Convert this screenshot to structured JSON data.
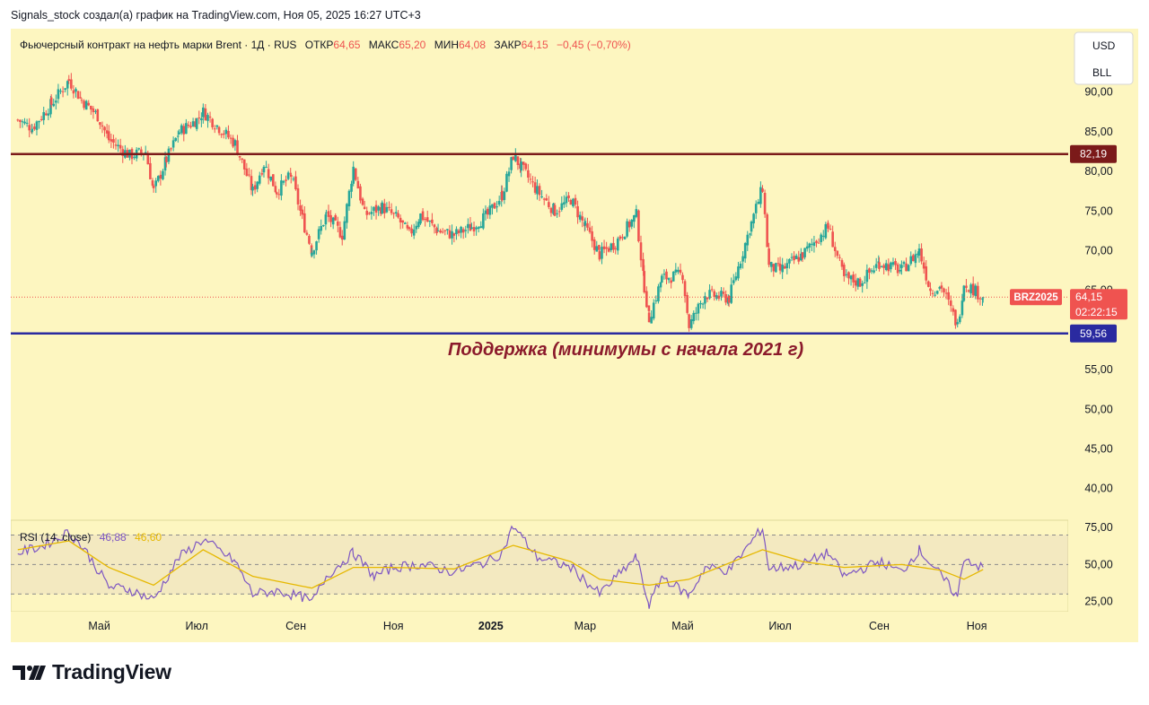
{
  "caption": "Signals_stock создал(а) график на TradingView.com, Ноя 05, 2025 16:27 UTC+3",
  "legend": {
    "symbol": "Фьючерсный контракт на нефть марки Brent · 1Д · RUS",
    "open_label": "ОТКР",
    "open": "64,65",
    "high_label": "МАКС",
    "high": "65,20",
    "low_label": "МИН",
    "low": "64,08",
    "close_label": "ЗАКР",
    "close": "64,15",
    "change": "−0,45 (−0,70%)"
  },
  "currency": {
    "top": "USD",
    "bottom": "BLL"
  },
  "levels": {
    "resistance": {
      "value": 82.19,
      "label": "82,19",
      "color": "#7b1a1a"
    },
    "support": {
      "value": 59.56,
      "label": "59,56",
      "color": "#2a2aa0"
    },
    "support_annotation": "Поддержка (минимумы с начала 2021 г)"
  },
  "last_price": {
    "ticker": "BRZ2025",
    "price": "64,15",
    "countdown": "02:22:15",
    "value": 64.15,
    "color": "#ef5350"
  },
  "rsi": {
    "label": "RSI (14, close)",
    "value": "46,88",
    "ma_value": "46,60",
    "value_color": "#7e57c2",
    "ma_color": "#e6b800"
  },
  "brand": "TradingView",
  "colors": {
    "background": "#fdf6c0",
    "up": "#26a69a",
    "down": "#ef5350"
  },
  "chart_data": [
    {
      "type": "candlestick",
      "title": "Фьючерсный контракт на нефть марки Brent · 1Д · RUS",
      "ylim": [
        36,
        98
      ],
      "y_ticks": [
        "95,00",
        "90,00",
        "85,00",
        "80,00",
        "75,00",
        "70,00",
        "65,00",
        "60,00",
        "55,00",
        "50,00",
        "45,00",
        "40,00"
      ],
      "y_tick_values": [
        95,
        90,
        85,
        80,
        75,
        70,
        65,
        60,
        55,
        50,
        45,
        40
      ],
      "x_ticks": [
        "Май",
        "Июл",
        "Сен",
        "Ноя",
        "2025",
        "Мар",
        "Май",
        "Июл",
        "Сен",
        "Ноя"
      ],
      "x_tick_dates": [
        "2024-05-01",
        "2024-07-01",
        "2024-09-01",
        "2024-11-01",
        "2025-01-01",
        "2025-03-01",
        "2025-05-01",
        "2025-07-01",
        "2025-09-01",
        "2025-11-01"
      ],
      "x_range": [
        "2024-03-10",
        "2025-11-06"
      ],
      "series": [
        {
          "name": "Фьючерсный контракт на нефть марки Brent",
          "points": [
            [
              "2024-03-11",
              86.5
            ],
            [
              "2024-03-20",
              85.5
            ],
            [
              "2024-04-01",
              88.5
            ],
            [
              "2024-04-12",
              91.5
            ],
            [
              "2024-04-20",
              89.0
            ],
            [
              "2024-04-30",
              87.0
            ],
            [
              "2024-05-07",
              84.0
            ],
            [
              "2024-05-20",
              82.0
            ],
            [
              "2024-05-30",
              82.5
            ],
            [
              "2024-06-04",
              77.5
            ],
            [
              "2024-06-12",
              81.5
            ],
            [
              "2024-06-20",
              85.0
            ],
            [
              "2024-07-01",
              86.5
            ],
            [
              "2024-07-05",
              87.5
            ],
            [
              "2024-07-15",
              85.5
            ],
            [
              "2024-07-25",
              83.5
            ],
            [
              "2024-08-05",
              77.5
            ],
            [
              "2024-08-12",
              81.0
            ],
            [
              "2024-08-20",
              77.5
            ],
            [
              "2024-08-29",
              79.5
            ],
            [
              "2024-09-05",
              74.0
            ],
            [
              "2024-09-11",
              70.0
            ],
            [
              "2024-09-20",
              74.5
            ],
            [
              "2024-09-30",
              72.0
            ],
            [
              "2024-10-07",
              80.5
            ],
            [
              "2024-10-14",
              74.5
            ],
            [
              "2024-10-25",
              75.5
            ],
            [
              "2024-11-04",
              74.0
            ],
            [
              "2024-11-11",
              72.0
            ],
            [
              "2024-11-18",
              74.5
            ],
            [
              "2024-11-29",
              72.5
            ],
            [
              "2024-12-09",
              72.0
            ],
            [
              "2024-12-20",
              73.0
            ],
            [
              "2024-12-30",
              74.5
            ],
            [
              "2025-01-08",
              77.0
            ],
            [
              "2025-01-15",
              82.0
            ],
            [
              "2025-01-20",
              80.5
            ],
            [
              "2025-01-30",
              77.5
            ],
            [
              "2025-02-10",
              75.0
            ],
            [
              "2025-02-20",
              76.5
            ],
            [
              "2025-03-01",
              73.0
            ],
            [
              "2025-03-10",
              69.5
            ],
            [
              "2025-03-20",
              71.0
            ],
            [
              "2025-04-02",
              74.5
            ],
            [
              "2025-04-07",
              65.5
            ],
            [
              "2025-04-10",
              61.5
            ],
            [
              "2025-04-18",
              66.5
            ],
            [
              "2025-05-01",
              67.0
            ],
            [
              "2025-05-05",
              60.5
            ],
            [
              "2025-05-15",
              64.5
            ],
            [
              "2025-05-30",
              64.0
            ],
            [
              "2025-06-13",
              73.5
            ],
            [
              "2025-06-20",
              78.0
            ],
            [
              "2025-06-24",
              68.0
            ],
            [
              "2025-07-01",
              67.5
            ],
            [
              "2025-07-15",
              69.5
            ],
            [
              "2025-07-31",
              73.0
            ],
            [
              "2025-08-10",
              66.5
            ],
            [
              "2025-08-20",
              66.0
            ],
            [
              "2025-09-01",
              68.5
            ],
            [
              "2025-09-15",
              67.5
            ],
            [
              "2025-09-26",
              70.0
            ],
            [
              "2025-10-03",
              65.0
            ],
            [
              "2025-10-10",
              65.5
            ],
            [
              "2025-10-20",
              60.5
            ],
            [
              "2025-10-24",
              66.0
            ],
            [
              "2025-11-05",
              64.15
            ]
          ]
        }
      ]
    },
    {
      "type": "line",
      "title": "RSI (14, close)",
      "ylim": [
        18,
        80
      ],
      "y_ticks": [
        "75,00",
        "50,00",
        "25,00"
      ],
      "y_tick_values": [
        75,
        50,
        25
      ],
      "band": [
        30,
        70
      ],
      "series": [
        {
          "name": "RSI",
          "points": [
            [
              "2024-03-11",
              58
            ],
            [
              "2024-03-25",
              62
            ],
            [
              "2024-04-05",
              68
            ],
            [
              "2024-04-12",
              72
            ],
            [
              "2024-04-22",
              60
            ],
            [
              "2024-05-07",
              35
            ],
            [
              "2024-05-20",
              33
            ],
            [
              "2024-06-04",
              26
            ],
            [
              "2024-06-20",
              55
            ],
            [
              "2024-07-05",
              67
            ],
            [
              "2024-07-25",
              52
            ],
            [
              "2024-08-05",
              30
            ],
            [
              "2024-08-20",
              32
            ],
            [
              "2024-09-05",
              28
            ],
            [
              "2024-09-11",
              24
            ],
            [
              "2024-09-20",
              42
            ],
            [
              "2024-10-07",
              58
            ],
            [
              "2024-10-20",
              42
            ],
            [
              "2024-11-01",
              48
            ],
            [
              "2024-11-18",
              50
            ],
            [
              "2024-12-09",
              45
            ],
            [
              "2024-12-30",
              52
            ],
            [
              "2025-01-08",
              58
            ],
            [
              "2025-01-15",
              76
            ],
            [
              "2025-01-30",
              55
            ],
            [
              "2025-02-20",
              48
            ],
            [
              "2025-03-10",
              30
            ],
            [
              "2025-04-02",
              55
            ],
            [
              "2025-04-10",
              22
            ],
            [
              "2025-04-18",
              42
            ],
            [
              "2025-05-05",
              29
            ],
            [
              "2025-05-15",
              48
            ],
            [
              "2025-05-30",
              46
            ],
            [
              "2025-06-20",
              75
            ],
            [
              "2025-06-24",
              47
            ],
            [
              "2025-07-15",
              50
            ],
            [
              "2025-07-31",
              58
            ],
            [
              "2025-08-10",
              42
            ],
            [
              "2025-09-01",
              52
            ],
            [
              "2025-09-15",
              45
            ],
            [
              "2025-09-26",
              60
            ],
            [
              "2025-10-10",
              42
            ],
            [
              "2025-10-20",
              28
            ],
            [
              "2025-10-24",
              55
            ],
            [
              "2025-11-05",
              47
            ]
          ]
        },
        {
          "name": "RSI-based MA",
          "points": [
            [
              "2024-03-11",
              60
            ],
            [
              "2024-04-12",
              66
            ],
            [
              "2024-05-07",
              48
            ],
            [
              "2024-06-04",
              36
            ],
            [
              "2024-07-05",
              60
            ],
            [
              "2024-08-05",
              42
            ],
            [
              "2024-09-11",
              34
            ],
            [
              "2024-10-07",
              48
            ],
            [
              "2024-11-01",
              48
            ],
            [
              "2024-12-09",
              47
            ],
            [
              "2025-01-15",
              63
            ],
            [
              "2025-02-20",
              52
            ],
            [
              "2025-03-10",
              40
            ],
            [
              "2025-04-10",
              36
            ],
            [
              "2025-05-05",
              40
            ],
            [
              "2025-06-20",
              60
            ],
            [
              "2025-07-15",
              52
            ],
            [
              "2025-08-10",
              48
            ],
            [
              "2025-09-15",
              50
            ],
            [
              "2025-10-10",
              46
            ],
            [
              "2025-10-24",
              40
            ],
            [
              "2025-11-05",
              46.6
            ]
          ]
        }
      ]
    }
  ]
}
